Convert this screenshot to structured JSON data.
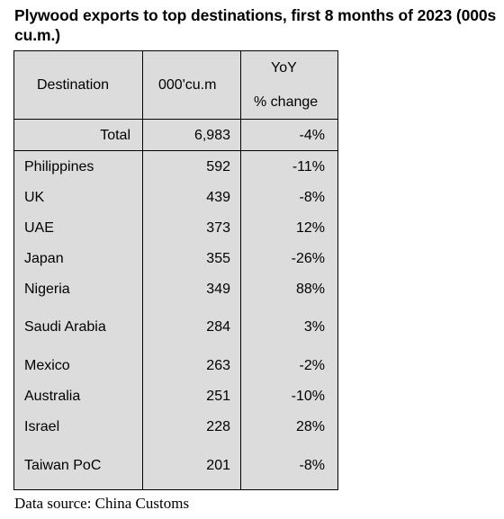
{
  "title": "Plywood exports to top destinations, first 8 months of 2023 (000s cu.m.)",
  "source": "Data source: China Customs",
  "chart_data": {
    "type": "table",
    "columns": {
      "destination": "Destination",
      "volume": "000'cu.m",
      "yoy_line1": "YoY",
      "yoy_line2": "% change"
    },
    "total": {
      "label": "Total",
      "volume": "6,983",
      "change": "-4%"
    },
    "rows": [
      {
        "destination": "Philippines",
        "volume": "592",
        "change": "-11%"
      },
      {
        "destination": "UK",
        "volume": "439",
        "change": "-8%"
      },
      {
        "destination": "UAE",
        "volume": "373",
        "change": "12%"
      },
      {
        "destination": "Japan",
        "volume": "355",
        "change": "-26%"
      },
      {
        "destination": "Nigeria",
        "volume": "349",
        "change": "88%"
      },
      {
        "destination": "Saudi Arabia",
        "volume": "284",
        "change": "3%"
      },
      {
        "destination": "Mexico",
        "volume": "263",
        "change": "-2%"
      },
      {
        "destination": "Australia",
        "volume": "251",
        "change": "-10%"
      },
      {
        "destination": "Israel",
        "volume": "228",
        "change": "28%"
      },
      {
        "destination": "Taiwan PoC",
        "volume": "201",
        "change": "-8%"
      }
    ]
  }
}
